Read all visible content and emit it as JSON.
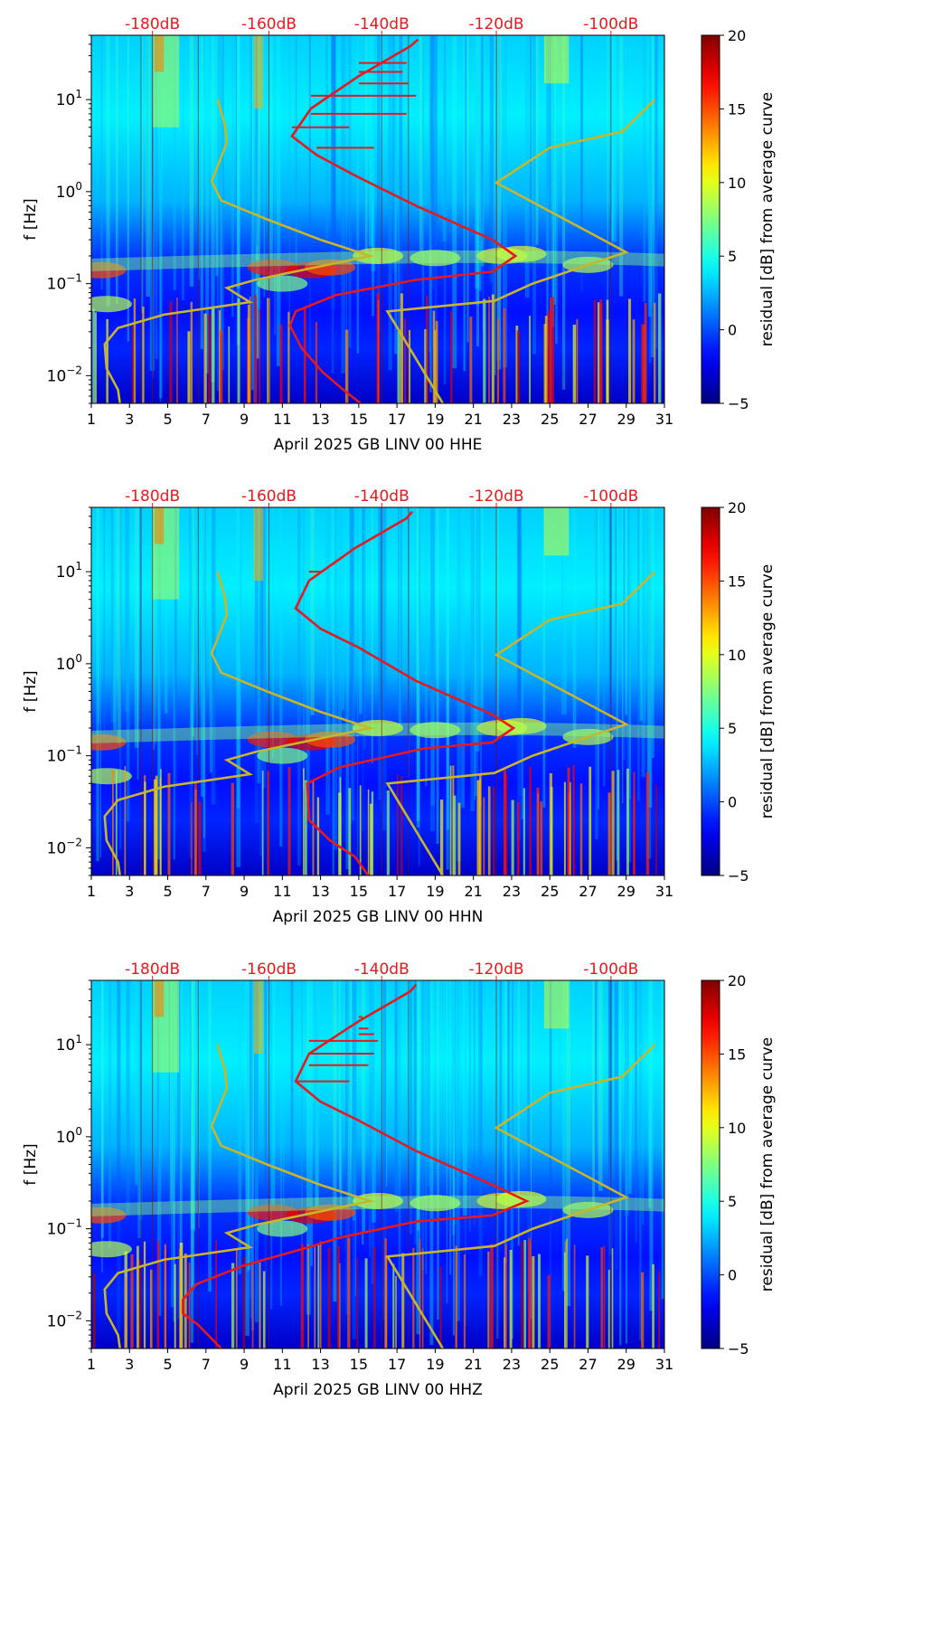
{
  "colors": {
    "db_axis_text": "#e8191c",
    "nlnm_nhnm_curves": "#c9b52a",
    "median_curve": "#e8191c",
    "colormap": "jet"
  },
  "chart_data": [
    {
      "type": "heatmap",
      "xlabel": "April 2025 GB LINV 00 HHE",
      "ylabel": "f [Hz]",
      "x_ticks": [
        "1",
        "3",
        "5",
        "7",
        "9",
        "11",
        "13",
        "15",
        "17",
        "19",
        "21",
        "23",
        "25",
        "27",
        "29",
        "31"
      ],
      "xlim": [
        1,
        31
      ],
      "y_scale": "log",
      "ylim": [
        0.005,
        50
      ],
      "y_ticks": [
        {
          "label": "10",
          "exp": "−2",
          "value": 0.01
        },
        {
          "label": "10",
          "exp": "−1",
          "value": 0.1
        },
        {
          "label": "10",
          "exp": "0",
          "value": 1
        },
        {
          "label": "10",
          "exp": "1",
          "value": 10
        }
      ],
      "db_axis_ticks": [
        {
          "label": "-180dB",
          "x": 4.2
        },
        {
          "label": "-160dB",
          "x": 10.3
        },
        {
          "label": "-140dB",
          "x": 16.2
        },
        {
          "label": "-120dB",
          "x": 22.2
        },
        {
          "label": "-100dB",
          "x": 28.2
        }
      ],
      "colorbar": {
        "label": "residual [dB] from average curve",
        "min": -5,
        "max": 20,
        "ticks": [
          "20",
          "15",
          "10",
          "5",
          "0",
          "−5"
        ]
      },
      "nlnm": [
        [
          2.5,
          0.005
        ],
        [
          2.4,
          0.007
        ],
        [
          1.8,
          0.012
        ],
        [
          1.7,
          0.022
        ],
        [
          2.4,
          0.033
        ],
        [
          4.8,
          0.046
        ],
        [
          9.3,
          0.063
        ],
        [
          8.1,
          0.09
        ],
        [
          9.6,
          0.11
        ],
        [
          15.6,
          0.2
        ],
        [
          13,
          0.3
        ],
        [
          10.2,
          0.5
        ],
        [
          7.8,
          0.8
        ],
        [
          7.3,
          1.3
        ],
        [
          8.1,
          3.4
        ],
        [
          8,
          5.3
        ],
        [
          7.6,
          10
        ]
      ],
      "nhnm": [
        [
          19.4,
          0.005
        ],
        [
          16.5,
          0.05
        ],
        [
          22.1,
          0.065
        ],
        [
          24.1,
          0.1
        ],
        [
          26.6,
          0.15
        ],
        [
          29,
          0.22
        ],
        [
          22.2,
          1.25
        ],
        [
          25,
          3
        ],
        [
          28.8,
          4.5
        ],
        [
          30.5,
          10
        ]
      ],
      "median": [
        [
          15.1,
          0.005
        ],
        [
          14.2,
          0.007
        ],
        [
          13.1,
          0.011
        ],
        [
          12,
          0.02
        ],
        [
          11.4,
          0.035
        ],
        [
          11.7,
          0.05
        ],
        [
          13.8,
          0.075
        ],
        [
          18,
          0.11
        ],
        [
          22,
          0.135
        ],
        [
          23.2,
          0.2
        ],
        [
          22,
          0.3
        ],
        [
          18,
          0.7
        ],
        [
          14.8,
          1.5
        ],
        [
          12.8,
          2.5
        ],
        [
          11.5,
          4
        ],
        [
          12.5,
          8
        ],
        [
          15,
          18
        ],
        [
          17.7,
          38
        ],
        [
          18.1,
          45
        ]
      ],
      "spikes": [
        [
          13,
          3
        ],
        [
          14.5,
          5
        ],
        [
          15.8,
          3
        ],
        [
          17.5,
          7
        ],
        [
          18,
          11
        ],
        [
          17.6,
          15
        ],
        [
          17.3,
          20
        ],
        [
          17.5,
          25
        ]
      ]
    },
    {
      "type": "heatmap",
      "xlabel": "April 2025 GB LINV 00 HHN",
      "ylabel": "f [Hz]",
      "x_ticks": [
        "1",
        "3",
        "5",
        "7",
        "9",
        "11",
        "13",
        "15",
        "17",
        "19",
        "21",
        "23",
        "25",
        "27",
        "29",
        "31"
      ],
      "xlim": [
        1,
        31
      ],
      "y_scale": "log",
      "ylim": [
        0.005,
        50
      ],
      "y_ticks": [
        {
          "label": "10",
          "exp": "−2",
          "value": 0.01
        },
        {
          "label": "10",
          "exp": "−1",
          "value": 0.1
        },
        {
          "label": "10",
          "exp": "0",
          "value": 1
        },
        {
          "label": "10",
          "exp": "1",
          "value": 10
        }
      ],
      "db_axis_ticks": [
        {
          "label": "-180dB",
          "x": 4.2
        },
        {
          "label": "-160dB",
          "x": 10.3
        },
        {
          "label": "-140dB",
          "x": 16.2
        },
        {
          "label": "-120dB",
          "x": 22.2
        },
        {
          "label": "-100dB",
          "x": 28.2
        }
      ],
      "colorbar": {
        "label": "residual [dB] from average curve",
        "min": -5,
        "max": 20,
        "ticks": [
          "20",
          "15",
          "10",
          "5",
          "0",
          "−5"
        ]
      },
      "nlnm": [
        [
          2.5,
          0.005
        ],
        [
          2.4,
          0.007
        ],
        [
          1.8,
          0.012
        ],
        [
          1.7,
          0.022
        ],
        [
          2.4,
          0.033
        ],
        [
          4.8,
          0.046
        ],
        [
          9.3,
          0.063
        ],
        [
          8.1,
          0.09
        ],
        [
          9.6,
          0.11
        ],
        [
          15.6,
          0.2
        ],
        [
          13,
          0.3
        ],
        [
          10.2,
          0.5
        ],
        [
          7.8,
          0.8
        ],
        [
          7.3,
          1.3
        ],
        [
          8.1,
          3.4
        ],
        [
          8,
          5.3
        ],
        [
          7.6,
          10
        ]
      ],
      "nhnm": [
        [
          19.4,
          0.005
        ],
        [
          16.5,
          0.05
        ],
        [
          22.1,
          0.065
        ],
        [
          24.1,
          0.1
        ],
        [
          26.6,
          0.15
        ],
        [
          29,
          0.22
        ],
        [
          22.2,
          1.25
        ],
        [
          25,
          3
        ],
        [
          28.8,
          4.5
        ],
        [
          30.5,
          10
        ]
      ],
      "median": [
        [
          15.5,
          0.005
        ],
        [
          14.8,
          0.008
        ],
        [
          13.5,
          0.012
        ],
        [
          12.4,
          0.02
        ],
        [
          12.3,
          0.05
        ],
        [
          14,
          0.075
        ],
        [
          18.4,
          0.12
        ],
        [
          22,
          0.14
        ],
        [
          23.1,
          0.2
        ],
        [
          22,
          0.28
        ],
        [
          18,
          0.65
        ],
        [
          15,
          1.5
        ],
        [
          13,
          2.4
        ],
        [
          11.7,
          4
        ],
        [
          12.4,
          8
        ],
        [
          14.8,
          18
        ],
        [
          17.5,
          38
        ],
        [
          17.8,
          45
        ]
      ],
      "spikes": [
        [
          13,
          10
        ]
      ]
    },
    {
      "type": "heatmap",
      "xlabel": "April 2025 GB LINV 00 HHZ",
      "ylabel": "f [Hz]",
      "x_ticks": [
        "1",
        "3",
        "5",
        "7",
        "9",
        "11",
        "13",
        "15",
        "17",
        "19",
        "21",
        "23",
        "25",
        "27",
        "29",
        "31"
      ],
      "xlim": [
        1,
        31
      ],
      "y_scale": "log",
      "ylim": [
        0.005,
        50
      ],
      "y_ticks": [
        {
          "label": "10",
          "exp": "−2",
          "value": 0.01
        },
        {
          "label": "10",
          "exp": "−1",
          "value": 0.1
        },
        {
          "label": "10",
          "exp": "0",
          "value": 1
        },
        {
          "label": "10",
          "exp": "1",
          "value": 10
        }
      ],
      "db_axis_ticks": [
        {
          "label": "-180dB",
          "x": 4.2
        },
        {
          "label": "-160dB",
          "x": 10.3
        },
        {
          "label": "-140dB",
          "x": 16.2
        },
        {
          "label": "-120dB",
          "x": 22.2
        },
        {
          "label": "-100dB",
          "x": 28.2
        }
      ],
      "colorbar": {
        "label": "residual [dB] from average curve",
        "min": -5,
        "max": 20,
        "ticks": [
          "20",
          "15",
          "10",
          "5",
          "0",
          "−5"
        ]
      },
      "nlnm": [
        [
          2.5,
          0.005
        ],
        [
          2.4,
          0.007
        ],
        [
          1.8,
          0.012
        ],
        [
          1.7,
          0.022
        ],
        [
          2.4,
          0.033
        ],
        [
          4.8,
          0.046
        ],
        [
          9.3,
          0.063
        ],
        [
          8.1,
          0.09
        ],
        [
          9.6,
          0.11
        ],
        [
          15.6,
          0.2
        ],
        [
          13,
          0.3
        ],
        [
          10.2,
          0.5
        ],
        [
          7.8,
          0.8
        ],
        [
          7.3,
          1.3
        ],
        [
          8.1,
          3.4
        ],
        [
          8,
          5.3
        ],
        [
          7.6,
          10
        ]
      ],
      "nhnm": [
        [
          19.4,
          0.005
        ],
        [
          16.5,
          0.05
        ],
        [
          22.1,
          0.065
        ],
        [
          24.1,
          0.1
        ],
        [
          26.6,
          0.15
        ],
        [
          29,
          0.22
        ],
        [
          22.2,
          1.25
        ],
        [
          25,
          3
        ],
        [
          28.8,
          4.5
        ],
        [
          30.5,
          10
        ]
      ],
      "median": [
        [
          7.8,
          0.005
        ],
        [
          6.6,
          0.009
        ],
        [
          5.8,
          0.012
        ],
        [
          5.8,
          0.017
        ],
        [
          6.5,
          0.025
        ],
        [
          9,
          0.04
        ],
        [
          12,
          0.06
        ],
        [
          14,
          0.08
        ],
        [
          18,
          0.12
        ],
        [
          22,
          0.14
        ],
        [
          23.8,
          0.2
        ],
        [
          22,
          0.3
        ],
        [
          18,
          0.7
        ],
        [
          15,
          1.5
        ],
        [
          13,
          2.4
        ],
        [
          11.7,
          4
        ],
        [
          12.4,
          8
        ],
        [
          15,
          18
        ],
        [
          17.7,
          38
        ],
        [
          18,
          45
        ]
      ],
      "spikes": [
        [
          13,
          3
        ],
        [
          14.5,
          4
        ],
        [
          15.5,
          6
        ],
        [
          15.8,
          8
        ],
        [
          16,
          11
        ],
        [
          15.8,
          13
        ],
        [
          15.5,
          15
        ],
        [
          15.2,
          20
        ]
      ]
    }
  ]
}
